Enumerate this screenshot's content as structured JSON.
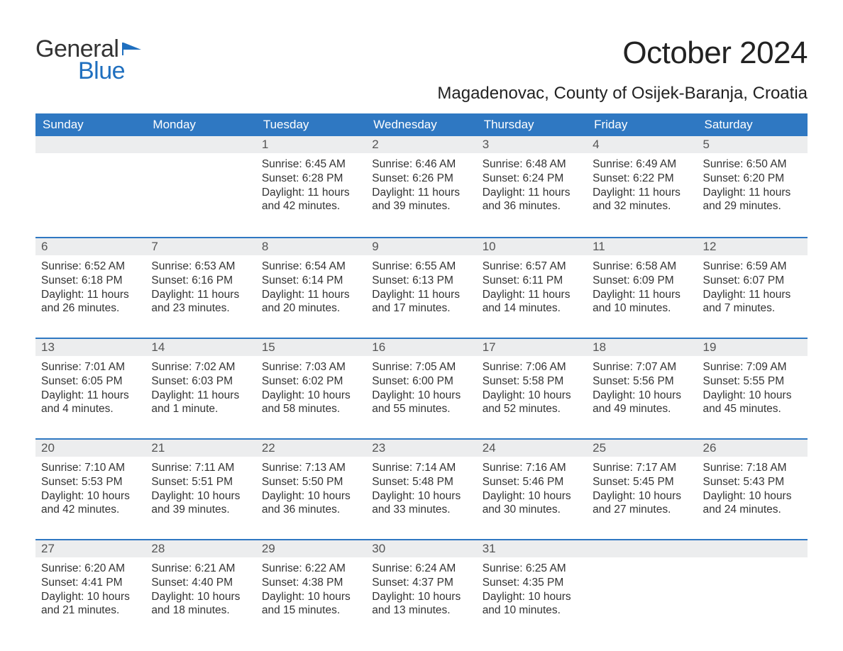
{
  "logo": {
    "word1": "General",
    "word2": "Blue",
    "text_color": "#333333",
    "accent_color": "#1f6fbf",
    "flag_color": "#1f6fbf"
  },
  "title": {
    "month": "October 2024",
    "location": "Magadenovac, County of Osijek-Baranja, Croatia",
    "title_fontsize": 44,
    "location_fontsize": 24
  },
  "colors": {
    "header_bg": "#2f78c2",
    "header_text": "#ffffff",
    "daynum_bg": "#ecedee",
    "daynum_text": "#555555",
    "body_text": "#333333",
    "page_bg": "#ffffff",
    "week_divider": "#2f78c2"
  },
  "weekday_headers": [
    "Sunday",
    "Monday",
    "Tuesday",
    "Wednesday",
    "Thursday",
    "Friday",
    "Saturday"
  ],
  "weeks": [
    [
      {
        "num": "",
        "lines": []
      },
      {
        "num": "",
        "lines": []
      },
      {
        "num": "1",
        "lines": [
          "Sunrise: 6:45 AM",
          "Sunset: 6:28 PM",
          "Daylight: 11 hours and 42 minutes."
        ]
      },
      {
        "num": "2",
        "lines": [
          "Sunrise: 6:46 AM",
          "Sunset: 6:26 PM",
          "Daylight: 11 hours and 39 minutes."
        ]
      },
      {
        "num": "3",
        "lines": [
          "Sunrise: 6:48 AM",
          "Sunset: 6:24 PM",
          "Daylight: 11 hours and 36 minutes."
        ]
      },
      {
        "num": "4",
        "lines": [
          "Sunrise: 6:49 AM",
          "Sunset: 6:22 PM",
          "Daylight: 11 hours and 32 minutes."
        ]
      },
      {
        "num": "5",
        "lines": [
          "Sunrise: 6:50 AM",
          "Sunset: 6:20 PM",
          "Daylight: 11 hours and 29 minutes."
        ]
      }
    ],
    [
      {
        "num": "6",
        "lines": [
          "Sunrise: 6:52 AM",
          "Sunset: 6:18 PM",
          "Daylight: 11 hours and 26 minutes."
        ]
      },
      {
        "num": "7",
        "lines": [
          "Sunrise: 6:53 AM",
          "Sunset: 6:16 PM",
          "Daylight: 11 hours and 23 minutes."
        ]
      },
      {
        "num": "8",
        "lines": [
          "Sunrise: 6:54 AM",
          "Sunset: 6:14 PM",
          "Daylight: 11 hours and 20 minutes."
        ]
      },
      {
        "num": "9",
        "lines": [
          "Sunrise: 6:55 AM",
          "Sunset: 6:13 PM",
          "Daylight: 11 hours and 17 minutes."
        ]
      },
      {
        "num": "10",
        "lines": [
          "Sunrise: 6:57 AM",
          "Sunset: 6:11 PM",
          "Daylight: 11 hours and 14 minutes."
        ]
      },
      {
        "num": "11",
        "lines": [
          "Sunrise: 6:58 AM",
          "Sunset: 6:09 PM",
          "Daylight: 11 hours and 10 minutes."
        ]
      },
      {
        "num": "12",
        "lines": [
          "Sunrise: 6:59 AM",
          "Sunset: 6:07 PM",
          "Daylight: 11 hours and 7 minutes."
        ]
      }
    ],
    [
      {
        "num": "13",
        "lines": [
          "Sunrise: 7:01 AM",
          "Sunset: 6:05 PM",
          "Daylight: 11 hours and 4 minutes."
        ]
      },
      {
        "num": "14",
        "lines": [
          "Sunrise: 7:02 AM",
          "Sunset: 6:03 PM",
          "Daylight: 11 hours and 1 minute."
        ]
      },
      {
        "num": "15",
        "lines": [
          "Sunrise: 7:03 AM",
          "Sunset: 6:02 PM",
          "Daylight: 10 hours and 58 minutes."
        ]
      },
      {
        "num": "16",
        "lines": [
          "Sunrise: 7:05 AM",
          "Sunset: 6:00 PM",
          "Daylight: 10 hours and 55 minutes."
        ]
      },
      {
        "num": "17",
        "lines": [
          "Sunrise: 7:06 AM",
          "Sunset: 5:58 PM",
          "Daylight: 10 hours and 52 minutes."
        ]
      },
      {
        "num": "18",
        "lines": [
          "Sunrise: 7:07 AM",
          "Sunset: 5:56 PM",
          "Daylight: 10 hours and 49 minutes."
        ]
      },
      {
        "num": "19",
        "lines": [
          "Sunrise: 7:09 AM",
          "Sunset: 5:55 PM",
          "Daylight: 10 hours and 45 minutes."
        ]
      }
    ],
    [
      {
        "num": "20",
        "lines": [
          "Sunrise: 7:10 AM",
          "Sunset: 5:53 PM",
          "Daylight: 10 hours and 42 minutes."
        ]
      },
      {
        "num": "21",
        "lines": [
          "Sunrise: 7:11 AM",
          "Sunset: 5:51 PM",
          "Daylight: 10 hours and 39 minutes."
        ]
      },
      {
        "num": "22",
        "lines": [
          "Sunrise: 7:13 AM",
          "Sunset: 5:50 PM",
          "Daylight: 10 hours and 36 minutes."
        ]
      },
      {
        "num": "23",
        "lines": [
          "Sunrise: 7:14 AM",
          "Sunset: 5:48 PM",
          "Daylight: 10 hours and 33 minutes."
        ]
      },
      {
        "num": "24",
        "lines": [
          "Sunrise: 7:16 AM",
          "Sunset: 5:46 PM",
          "Daylight: 10 hours and 30 minutes."
        ]
      },
      {
        "num": "25",
        "lines": [
          "Sunrise: 7:17 AM",
          "Sunset: 5:45 PM",
          "Daylight: 10 hours and 27 minutes."
        ]
      },
      {
        "num": "26",
        "lines": [
          "Sunrise: 7:18 AM",
          "Sunset: 5:43 PM",
          "Daylight: 10 hours and 24 minutes."
        ]
      }
    ],
    [
      {
        "num": "27",
        "lines": [
          "Sunrise: 6:20 AM",
          "Sunset: 4:41 PM",
          "Daylight: 10 hours and 21 minutes."
        ]
      },
      {
        "num": "28",
        "lines": [
          "Sunrise: 6:21 AM",
          "Sunset: 4:40 PM",
          "Daylight: 10 hours and 18 minutes."
        ]
      },
      {
        "num": "29",
        "lines": [
          "Sunrise: 6:22 AM",
          "Sunset: 4:38 PM",
          "Daylight: 10 hours and 15 minutes."
        ]
      },
      {
        "num": "30",
        "lines": [
          "Sunrise: 6:24 AM",
          "Sunset: 4:37 PM",
          "Daylight: 10 hours and 13 minutes."
        ]
      },
      {
        "num": "31",
        "lines": [
          "Sunrise: 6:25 AM",
          "Sunset: 4:35 PM",
          "Daylight: 10 hours and 10 minutes."
        ]
      },
      {
        "num": "",
        "lines": []
      },
      {
        "num": "",
        "lines": []
      }
    ]
  ]
}
